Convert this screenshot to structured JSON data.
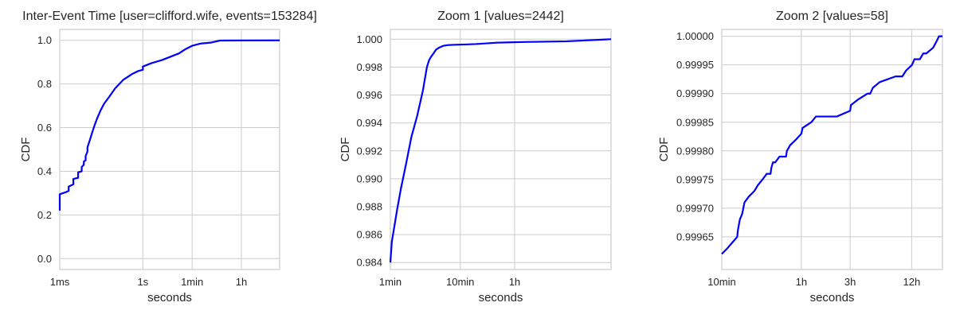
{
  "colors": {
    "line": "#0000ff",
    "grid": "#cccccc",
    "text": "#262626"
  },
  "chart_data": [
    {
      "type": "line",
      "title": "Inter-Event Time [user=clifford.wife, events=153284]",
      "xlabel": "seconds",
      "ylabel": "CDF",
      "xscale": "log",
      "xlim": [
        0.001,
        86400
      ],
      "ylim": [
        -0.05,
        1.05
      ],
      "grid": true,
      "x_ticks": [
        {
          "value": 0.001,
          "label": "1ms"
        },
        {
          "value": 1,
          "label": "1s"
        },
        {
          "value": 60,
          "label": "1min"
        },
        {
          "value": 3600,
          "label": "1h"
        }
      ],
      "y_ticks": [
        {
          "value": 0,
          "label": "0.0"
        },
        {
          "value": 0.2,
          "label": "0.2"
        },
        {
          "value": 0.4,
          "label": "0.4"
        },
        {
          "value": 0.6,
          "label": "0.6"
        },
        {
          "value": 0.8,
          "label": "0.8"
        },
        {
          "value": 1,
          "label": "1.0"
        }
      ],
      "series": [
        {
          "x": [
            0.001,
            0.001,
            0.0017,
            0.0021,
            0.0021,
            0.0031,
            0.0031,
            0.0046,
            0.0046,
            0.0062,
            0.0062,
            0.0074,
            0.0074,
            0.0086,
            0.0086,
            0.01,
            0.01,
            0.012,
            0.015,
            0.018,
            0.022,
            0.03,
            0.04,
            0.06,
            0.1,
            0.2,
            0.4,
            0.7,
            1.0,
            1.0,
            2,
            5,
            10,
            20,
            35,
            60,
            120,
            300,
            600,
            3600,
            86400
          ],
          "y": [
            0.22,
            0.295,
            0.305,
            0.31,
            0.33,
            0.34,
            0.365,
            0.37,
            0.395,
            0.4,
            0.42,
            0.43,
            0.445,
            0.45,
            0.47,
            0.49,
            0.51,
            0.54,
            0.58,
            0.61,
            0.64,
            0.68,
            0.71,
            0.74,
            0.78,
            0.82,
            0.845,
            0.86,
            0.865,
            0.88,
            0.895,
            0.91,
            0.925,
            0.94,
            0.96,
            0.975,
            0.985,
            0.99,
            0.999,
            0.9995,
            1.0
          ]
        }
      ]
    },
    {
      "type": "line",
      "title": "Zoom 1 [values=2442]",
      "xlabel": "seconds",
      "ylabel": "CDF",
      "xscale": "log",
      "xlim": [
        60,
        86400
      ],
      "ylim": [
        0.9835,
        1.0007
      ],
      "grid": true,
      "x_ticks": [
        {
          "value": 60,
          "label": "1min"
        },
        {
          "value": 600,
          "label": "10min"
        },
        {
          "value": 3600,
          "label": "1h"
        }
      ],
      "y_ticks": [
        {
          "value": 0.984,
          "label": "0.984"
        },
        {
          "value": 0.986,
          "label": "0.986"
        },
        {
          "value": 0.988,
          "label": "0.988"
        },
        {
          "value": 0.99,
          "label": "0.990"
        },
        {
          "value": 0.992,
          "label": "0.992"
        },
        {
          "value": 0.994,
          "label": "0.994"
        },
        {
          "value": 0.996,
          "label": "0.996"
        },
        {
          "value": 0.998,
          "label": "0.998"
        },
        {
          "value": 1.0,
          "label": "1.000"
        }
      ],
      "series": [
        {
          "x": [
            60,
            63,
            68,
            75,
            85,
            100,
            120,
            145,
            175,
            200,
            215,
            230,
            250,
            270,
            300,
            340,
            400,
            500,
            700,
            1000,
            2000,
            5000,
            20000,
            86400
          ],
          "y": [
            0.984,
            0.9855,
            0.9865,
            0.9878,
            0.9893,
            0.991,
            0.993,
            0.9945,
            0.9963,
            0.998,
            0.9985,
            0.99875,
            0.999,
            0.99925,
            0.9994,
            0.99952,
            0.99958,
            0.9996,
            0.99962,
            0.99965,
            0.99975,
            0.9998,
            0.99985,
            1.0
          ]
        }
      ]
    },
    {
      "type": "line",
      "title": "Zoom 2 [values=58]",
      "xlabel": "seconds",
      "ylabel": "CDF",
      "xscale": "log",
      "xlim": [
        600,
        86400
      ],
      "ylim": [
        0.999593,
        1.000012
      ],
      "grid": true,
      "x_ticks": [
        {
          "value": 600,
          "label": "10min"
        },
        {
          "value": 3600,
          "label": "1h"
        },
        {
          "value": 10800,
          "label": "3h"
        },
        {
          "value": 43200,
          "label": "12h"
        }
      ],
      "y_ticks": [
        {
          "value": 0.99965,
          "label": "0.99965"
        },
        {
          "value": 0.9997,
          "label": "0.99970"
        },
        {
          "value": 0.99975,
          "label": "0.99975"
        },
        {
          "value": 0.9998,
          "label": "0.99980"
        },
        {
          "value": 0.99985,
          "label": "0.99985"
        },
        {
          "value": 0.9999,
          "label": "0.99990"
        },
        {
          "value": 0.99995,
          "label": "0.99995"
        },
        {
          "value": 1.0,
          "label": "1.00000"
        }
      ],
      "series": [
        {
          "x": [
            600,
            680,
            760,
            850,
            860,
            900,
            950,
            1000,
            1100,
            1250,
            1350,
            1500,
            1650,
            1800,
            1830,
            1900,
            2000,
            2200,
            2550,
            2600,
            2800,
            3200,
            3600,
            3700,
            4500,
            5000,
            5100,
            8000,
            10800,
            11000,
            13000,
            16000,
            17000,
            18000,
            21000,
            30000,
            35000,
            38000,
            43500,
            46000,
            52000,
            56000,
            60000,
            70000,
            75000,
            80000,
            82000,
            86400
          ],
          "y": [
            0.99962,
            0.99963,
            0.99964,
            0.99965,
            0.99966,
            0.99968,
            0.99969,
            0.99971,
            0.99972,
            0.99973,
            0.99974,
            0.99975,
            0.99976,
            0.99976,
            0.99977,
            0.99978,
            0.99978,
            0.99979,
            0.99979,
            0.9998,
            0.99981,
            0.99982,
            0.99983,
            0.99984,
            0.99985,
            0.99986,
            0.99986,
            0.99986,
            0.99987,
            0.99988,
            0.99989,
            0.9999,
            0.9999,
            0.99991,
            0.99992,
            0.99993,
            0.99993,
            0.99994,
            0.99995,
            0.99996,
            0.99996,
            0.99997,
            0.99997,
            0.99998,
            0.99999,
            1.0,
            1.0,
            1.0
          ]
        }
      ]
    }
  ]
}
